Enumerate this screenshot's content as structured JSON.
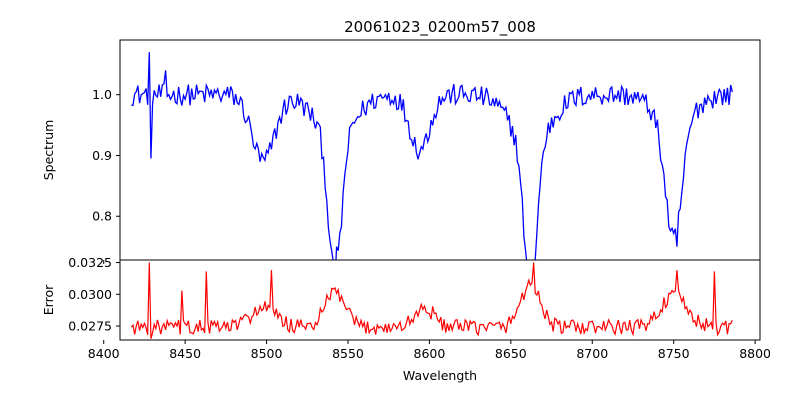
{
  "figure": {
    "title": "20061023_0200m57_008"
  },
  "chart_data": [
    {
      "type": "line",
      "panel": "top",
      "ylabel": "Spectrum",
      "xlim": [
        8410,
        8803
      ],
      "ylim": [
        0.728,
        1.09
      ],
      "xticks": [
        8400,
        8450,
        8500,
        8550,
        8600,
        8650,
        8700,
        8750,
        8800
      ],
      "yticks": [
        0.8,
        0.9,
        1.0
      ],
      "ytick_labels": [
        "0.8",
        "0.9",
        "1.0"
      ],
      "color": "#0000ff",
      "x_start": 8417,
      "x_end": 8786,
      "x_step": 1,
      "continuum": 1.0,
      "noise_amplitude": 0.018,
      "features": [
        {
          "center": 8498,
          "depth": 0.11,
          "width": 7
        },
        {
          "center": 8542,
          "depth": 0.23,
          "width": 4
        },
        {
          "center": 8542,
          "depth": 0.07,
          "width": 12
        },
        {
          "center": 8594,
          "depth": 0.09,
          "width": 6
        },
        {
          "center": 8662,
          "depth": 0.24,
          "width": 4
        },
        {
          "center": 8662,
          "depth": 0.08,
          "width": 12
        },
        {
          "center": 8750,
          "depth": 0.19,
          "width": 5
        },
        {
          "center": 8750,
          "depth": 0.05,
          "width": 11
        }
      ],
      "spikes": [
        {
          "x": 8428,
          "value": 1.07
        },
        {
          "x": 8429,
          "value": 0.895
        },
        {
          "x": 8438,
          "value": 1.04
        },
        {
          "x": 8543,
          "value": 0.75
        },
        {
          "x": 8665,
          "value": 0.73
        },
        {
          "x": 8752,
          "value": 0.75
        }
      ]
    },
    {
      "type": "line",
      "panel": "bottom",
      "xlabel": "Wavelength",
      "ylabel": "Error",
      "xlim": [
        8410,
        8803
      ],
      "ylim": [
        0.0264,
        0.0327
      ],
      "xticks": [
        8400,
        8450,
        8500,
        8550,
        8600,
        8650,
        8700,
        8750,
        8800
      ],
      "xtick_labels": [
        "8400",
        "8450",
        "8500",
        "8550",
        "8600",
        "8650",
        "8700",
        "8750",
        "8800"
      ],
      "yticks": [
        0.0275,
        0.03,
        0.0325
      ],
      "ytick_labels": [
        "0.0275",
        "0.0300",
        "0.0325"
      ],
      "color": "#ff0000",
      "x_start": 8417,
      "x_end": 8786,
      "x_step": 1,
      "baseline": 0.0274,
      "noise_amplitude": 0.0006,
      "bumps": [
        {
          "center": 8498,
          "height": 0.0015,
          "width": 8
        },
        {
          "center": 8542,
          "height": 0.0028,
          "width": 6
        },
        {
          "center": 8597,
          "height": 0.0015,
          "width": 6
        },
        {
          "center": 8662,
          "height": 0.0034,
          "width": 6
        },
        {
          "center": 8750,
          "height": 0.0025,
          "width": 8
        }
      ],
      "spikes": [
        {
          "x": 8428,
          "value": 0.0325
        },
        {
          "x": 8429,
          "value": 0.0265
        },
        {
          "x": 8448,
          "value": 0.0303
        },
        {
          "x": 8463,
          "value": 0.0318
        },
        {
          "x": 8503,
          "value": 0.0319
        },
        {
          "x": 8664,
          "value": 0.0325
        },
        {
          "x": 8752,
          "value": 0.0319
        },
        {
          "x": 8775,
          "value": 0.0318
        }
      ]
    }
  ]
}
